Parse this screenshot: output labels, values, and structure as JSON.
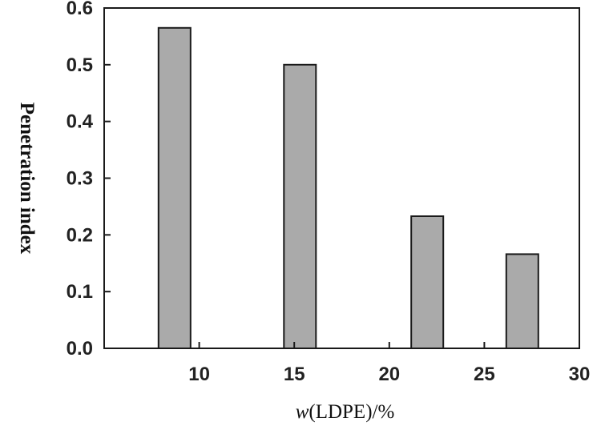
{
  "chart_data": {
    "type": "bar",
    "title": "",
    "xlabel_prefix": "w",
    "xlabel_suffix": "(LDPE)/%",
    "ylabel": "Penetration index",
    "xlim": [
      5,
      30
    ],
    "ylim": [
      0.0,
      0.6
    ],
    "x_ticks": [
      "10",
      "15",
      "20",
      "25",
      "30"
    ],
    "y_ticks": [
      "0.0",
      "0.1",
      "0.2",
      "0.3",
      "0.4",
      "0.5",
      "0.6"
    ],
    "x": [
      8.7,
      15.3,
      22.0,
      27.0
    ],
    "values": [
      0.565,
      0.5,
      0.233,
      0.166
    ],
    "bar_color": "#aaaaaa",
    "edge_color": "#1a1a1a",
    "grid": false,
    "legend": "none"
  }
}
